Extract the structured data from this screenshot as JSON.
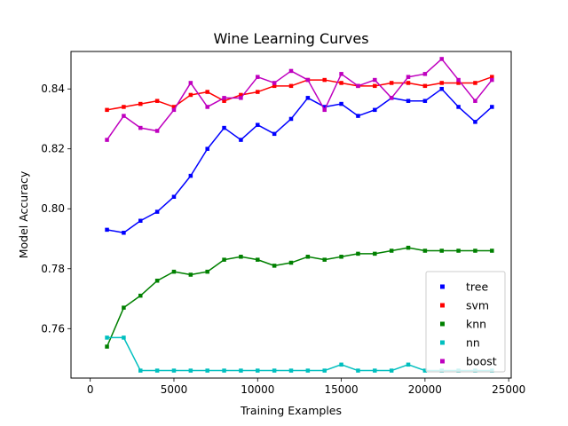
{
  "chart_data": {
    "type": "line",
    "title": "Wine Learning Curves",
    "xlabel": "Training Examples",
    "ylabel": "Model Accuracy",
    "xlim": [
      -1150,
      25150
    ],
    "ylim": [
      0.7435,
      0.8525
    ],
    "xticks": [
      0,
      5000,
      10000,
      15000,
      20000,
      25000
    ],
    "yticks": [
      0.76,
      0.78,
      0.8,
      0.82,
      0.84
    ],
    "ytick_labels": [
      "0.76",
      "0.78",
      "0.80",
      "0.82",
      "0.84"
    ],
    "grid": false,
    "legend_position": "lower-right",
    "x": [
      1000,
      2000,
      3000,
      4000,
      5000,
      6000,
      7000,
      8000,
      9000,
      10000,
      11000,
      12000,
      13000,
      14000,
      15000,
      16000,
      17000,
      18000,
      19000,
      20000,
      21000,
      22000,
      23000,
      24000
    ],
    "series": [
      {
        "name": "tree",
        "color": "#0000ff",
        "values": [
          0.793,
          0.792,
          0.796,
          0.799,
          0.804,
          0.811,
          0.82,
          0.827,
          0.823,
          0.828,
          0.825,
          0.83,
          0.837,
          0.834,
          0.835,
          0.831,
          0.833,
          0.837,
          0.836,
          0.836,
          0.84,
          0.834,
          0.829,
          0.834
        ]
      },
      {
        "name": "svm",
        "color": "#ff0000",
        "values": [
          0.833,
          0.834,
          0.835,
          0.836,
          0.834,
          0.838,
          0.839,
          0.836,
          0.838,
          0.839,
          0.841,
          0.841,
          0.843,
          0.843,
          0.842,
          0.841,
          0.841,
          0.842,
          0.842,
          0.841,
          0.842,
          0.842,
          0.842,
          0.844
        ]
      },
      {
        "name": "knn",
        "color": "#008000",
        "values": [
          0.754,
          0.767,
          0.771,
          0.776,
          0.779,
          0.778,
          0.779,
          0.783,
          0.784,
          0.783,
          0.781,
          0.782,
          0.784,
          0.783,
          0.784,
          0.785,
          0.785,
          0.786,
          0.787,
          0.786,
          0.786,
          0.786,
          0.786,
          0.786
        ]
      },
      {
        "name": "nn",
        "color": "#00bfbf",
        "values": [
          0.757,
          0.757,
          0.746,
          0.746,
          0.746,
          0.746,
          0.746,
          0.746,
          0.746,
          0.746,
          0.746,
          0.746,
          0.746,
          0.746,
          0.748,
          0.746,
          0.746,
          0.746,
          0.748,
          0.746,
          0.746,
          0.746,
          0.746,
          0.746
        ]
      },
      {
        "name": "boost",
        "color": "#bf00bf",
        "values": [
          0.823,
          0.831,
          0.827,
          0.826,
          0.833,
          0.842,
          0.834,
          0.837,
          0.837,
          0.844,
          0.842,
          0.846,
          0.843,
          0.833,
          0.845,
          0.841,
          0.843,
          0.837,
          0.844,
          0.845,
          0.85,
          0.843,
          0.836,
          0.843
        ]
      }
    ]
  }
}
